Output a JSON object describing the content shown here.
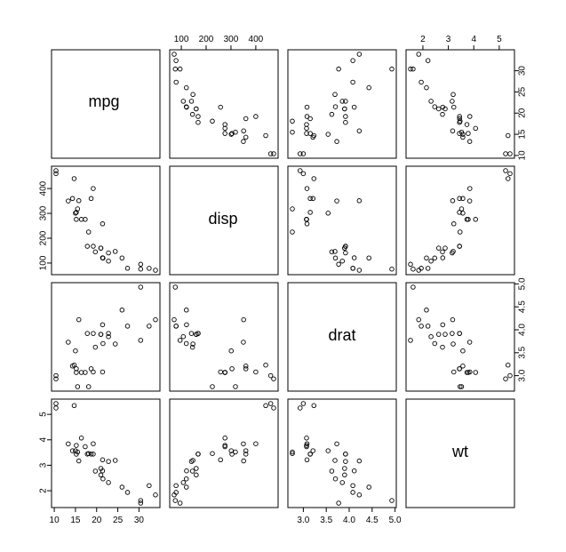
{
  "chart_data": {
    "type": "scatter",
    "variables": [
      "mpg",
      "disp",
      "drat",
      "wt"
    ],
    "ranges": {
      "mpg": [
        10.4,
        33.9
      ],
      "disp": [
        71.1,
        472
      ],
      "drat": [
        2.76,
        4.93
      ],
      "wt": [
        1.513,
        5.424
      ]
    },
    "ticks": {
      "mpg": [
        10,
        15,
        20,
        25,
        30
      ],
      "disp": [
        100,
        200,
        300,
        400
      ],
      "drat": [
        3.0,
        3.5,
        4.0,
        4.5,
        5.0
      ],
      "wt": [
        2,
        3,
        4,
        5
      ]
    },
    "tick_labels": {
      "mpg": [
        "10",
        "15",
        "20",
        "25",
        "30"
      ],
      "disp": [
        "100",
        "200",
        "300",
        "400"
      ],
      "drat": [
        "3.0",
        "3.5",
        "4.0",
        "4.5",
        "5.0"
      ],
      "wt": [
        "2",
        "3",
        "4",
        "5"
      ]
    },
    "data": {
      "mpg": [
        21.0,
        21.0,
        22.8,
        21.4,
        18.7,
        18.1,
        14.3,
        24.4,
        22.8,
        19.2,
        17.8,
        16.4,
        17.3,
        15.2,
        10.4,
        10.4,
        14.7,
        32.4,
        30.4,
        33.9,
        21.5,
        15.5,
        15.2,
        13.3,
        19.2,
        27.3,
        26.0,
        30.4,
        15.8,
        19.7,
        15.0,
        21.4
      ],
      "disp": [
        160,
        160,
        108,
        258,
        360,
        225,
        360,
        146.7,
        140.8,
        167.6,
        167.6,
        275.8,
        275.8,
        275.8,
        472,
        460,
        440,
        78.7,
        75.7,
        71.1,
        120.1,
        318,
        304,
        350,
        400,
        79,
        120.3,
        95.1,
        351,
        145,
        301,
        121
      ],
      "drat": [
        3.9,
        3.9,
        3.85,
        3.08,
        3.15,
        2.76,
        3.21,
        3.69,
        3.92,
        3.92,
        3.92,
        3.07,
        3.07,
        3.07,
        2.93,
        3.0,
        3.23,
        4.08,
        4.93,
        4.22,
        3.7,
        2.76,
        3.15,
        3.73,
        3.08,
        4.08,
        4.43,
        3.77,
        4.22,
        3.62,
        3.54,
        4.11
      ],
      "wt": [
        2.62,
        2.875,
        2.32,
        3.215,
        3.44,
        3.46,
        3.57,
        3.19,
        3.15,
        3.44,
        3.44,
        4.07,
        3.73,
        3.78,
        5.25,
        5.424,
        5.345,
        2.2,
        1.615,
        1.835,
        2.465,
        3.52,
        3.435,
        3.84,
        3.845,
        1.935,
        2.14,
        1.513,
        3.17,
        2.77,
        3.57,
        2.78
      ]
    }
  }
}
